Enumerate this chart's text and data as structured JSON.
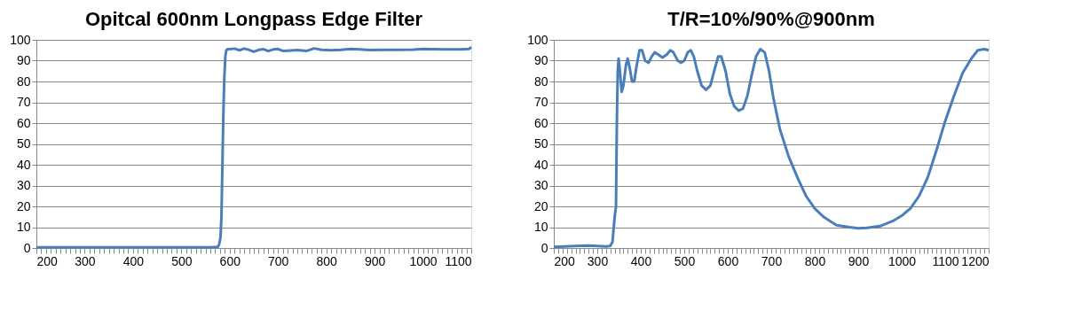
{
  "chart_data": [
    {
      "type": "line",
      "title": "Opitcal 600nm Longpass Edge Filter",
      "xlim": [
        200,
        1100
      ],
      "ylim": [
        0,
        100
      ],
      "yticks": [
        0,
        10,
        20,
        30,
        40,
        50,
        60,
        70,
        80,
        90,
        100
      ],
      "grid": "y",
      "marker": "none",
      "line_style": "solid",
      "xticks": [
        200,
        {
          "value": 210,
          "label": null
        },
        {
          "value": 220,
          "label": null
        },
        {
          "value": 230,
          "label": null
        },
        {
          "value": 240,
          "label": null
        },
        {
          "value": 250,
          "label": null
        },
        {
          "value": 260,
          "label": null
        },
        {
          "value": 270,
          "label": null
        },
        {
          "value": 280,
          "label": null
        },
        {
          "value": 290,
          "label": null
        },
        300,
        {
          "value": 310,
          "label": null
        },
        {
          "value": 320,
          "label": null
        },
        {
          "value": 330,
          "label": null
        },
        {
          "value": 340,
          "label": null
        },
        {
          "value": 350,
          "label": null
        },
        {
          "value": 360,
          "label": null
        },
        {
          "value": 370,
          "label": null
        },
        {
          "value": 380,
          "label": null
        },
        {
          "value": 390,
          "label": null
        },
        400,
        {
          "value": 410,
          "label": null
        },
        {
          "value": 420,
          "label": null
        },
        {
          "value": 430,
          "label": null
        },
        {
          "value": 440,
          "label": null
        },
        {
          "value": 450,
          "label": null
        },
        {
          "value": 460,
          "label": null
        },
        {
          "value": 470,
          "label": null
        },
        {
          "value": 480,
          "label": null
        },
        {
          "value": 490,
          "label": null
        },
        500,
        {
          "value": 510,
          "label": null
        },
        {
          "value": 520,
          "label": null
        },
        {
          "value": 530,
          "label": null
        },
        {
          "value": 540,
          "label": null
        },
        {
          "value": 550,
          "label": null
        },
        {
          "value": 560,
          "label": null
        },
        {
          "value": 570,
          "label": null
        },
        {
          "value": 580,
          "label": null
        },
        {
          "value": 590,
          "label": null
        },
        600,
        {
          "value": 610,
          "label": null
        },
        {
          "value": 620,
          "label": null
        },
        {
          "value": 630,
          "label": null
        },
        {
          "value": 640,
          "label": null
        },
        {
          "value": 650,
          "label": null
        },
        {
          "value": 660,
          "label": null
        },
        {
          "value": 670,
          "label": null
        },
        {
          "value": 680,
          "label": null
        },
        {
          "value": 690,
          "label": null
        },
        700,
        {
          "value": 710,
          "label": null
        },
        {
          "value": 720,
          "label": null
        },
        {
          "value": 730,
          "label": null
        },
        {
          "value": 740,
          "label": null
        },
        {
          "value": 750,
          "label": null
        },
        {
          "value": 760,
          "label": null
        },
        {
          "value": 770,
          "label": null
        },
        {
          "value": 780,
          "label": null
        },
        {
          "value": 790,
          "label": null
        },
        800,
        {
          "value": 810,
          "label": null
        },
        {
          "value": 820,
          "label": null
        },
        {
          "value": 830,
          "label": null
        },
        {
          "value": 840,
          "label": null
        },
        {
          "value": 850,
          "label": null
        },
        {
          "value": 860,
          "label": null
        },
        {
          "value": 870,
          "label": null
        },
        {
          "value": 880,
          "label": null
        },
        {
          "value": 890,
          "label": null
        },
        900,
        {
          "value": 910,
          "label": null
        },
        {
          "value": 920,
          "label": null
        },
        {
          "value": 930,
          "label": null
        },
        {
          "value": 940,
          "label": null
        },
        {
          "value": 950,
          "label": null
        },
        {
          "value": 960,
          "label": null
        },
        {
          "value": 970,
          "label": null
        },
        {
          "value": 980,
          "label": null
        },
        {
          "value": 990,
          "label": null
        },
        1000,
        {
          "value": 1010,
          "label": null
        },
        {
          "value": 1020,
          "label": null
        },
        {
          "value": 1030,
          "label": null
        },
        {
          "value": 1040,
          "label": null
        },
        {
          "value": 1050,
          "label": null
        },
        {
          "value": 1060,
          "label": null
        },
        {
          "value": 1070,
          "label": null
        },
        {
          "value": 1080,
          "label": null
        },
        {
          "value": 1090,
          "label": null
        },
        1100
      ],
      "series": [
        {
          "color": "#4a7ebb",
          "x": [
            200,
            300,
            400,
            500,
            560,
            575,
            578,
            581,
            583,
            585,
            587,
            589,
            591,
            593,
            596,
            600,
            610,
            620,
            630,
            640,
            650,
            660,
            670,
            680,
            690,
            700,
            710,
            720,
            740,
            760,
            775,
            790,
            810,
            830,
            850,
            870,
            890,
            920,
            950,
            980,
            1000,
            1020,
            1050,
            1080,
            1095,
            1100
          ],
          "values": [
            0.3,
            0.3,
            0.3,
            0.3,
            0.3,
            0.5,
            1.5,
            5,
            15,
            40,
            65,
            82,
            92,
            95,
            95.5,
            95.5,
            95.8,
            95,
            95.8,
            95.2,
            94.3,
            95.2,
            95.5,
            94.6,
            95.4,
            95.6,
            94.7,
            94.8,
            95.1,
            94.7,
            95.9,
            95.2,
            95,
            95.2,
            95.6,
            95.4,
            95.1,
            95.2,
            95.2,
            95.3,
            95.6,
            95.5,
            95.4,
            95.4,
            95.6,
            96.5
          ]
        }
      ]
    },
    {
      "type": "line",
      "title": "T/R=10%/90%@900nm",
      "xlim": [
        200,
        1200
      ],
      "ylim": [
        0,
        100
      ],
      "yticks": [
        0,
        10,
        20,
        30,
        40,
        50,
        60,
        70,
        80,
        90,
        100
      ],
      "grid": "y",
      "marker": "none",
      "line_style": "solid",
      "xticks": [
        200,
        {
          "value": 210,
          "label": null
        },
        {
          "value": 220,
          "label": null
        },
        {
          "value": 230,
          "label": null
        },
        {
          "value": 240,
          "label": null
        },
        {
          "value": 250,
          "label": null
        },
        {
          "value": 260,
          "label": null
        },
        {
          "value": 270,
          "label": null
        },
        {
          "value": 280,
          "label": null
        },
        {
          "value": 290,
          "label": null
        },
        300,
        {
          "value": 310,
          "label": null
        },
        {
          "value": 320,
          "label": null
        },
        {
          "value": 330,
          "label": null
        },
        {
          "value": 340,
          "label": null
        },
        {
          "value": 350,
          "label": null
        },
        {
          "value": 360,
          "label": null
        },
        {
          "value": 370,
          "label": null
        },
        {
          "value": 380,
          "label": null
        },
        {
          "value": 390,
          "label": null
        },
        400,
        {
          "value": 410,
          "label": null
        },
        {
          "value": 420,
          "label": null
        },
        {
          "value": 430,
          "label": null
        },
        {
          "value": 440,
          "label": null
        },
        {
          "value": 450,
          "label": null
        },
        {
          "value": 460,
          "label": null
        },
        {
          "value": 470,
          "label": null
        },
        {
          "value": 480,
          "label": null
        },
        {
          "value": 490,
          "label": null
        },
        500,
        {
          "value": 510,
          "label": null
        },
        {
          "value": 520,
          "label": null
        },
        {
          "value": 530,
          "label": null
        },
        {
          "value": 540,
          "label": null
        },
        {
          "value": 550,
          "label": null
        },
        {
          "value": 560,
          "label": null
        },
        {
          "value": 570,
          "label": null
        },
        {
          "value": 580,
          "label": null
        },
        {
          "value": 590,
          "label": null
        },
        600,
        {
          "value": 610,
          "label": null
        },
        {
          "value": 620,
          "label": null
        },
        {
          "value": 630,
          "label": null
        },
        {
          "value": 640,
          "label": null
        },
        {
          "value": 650,
          "label": null
        },
        {
          "value": 660,
          "label": null
        },
        {
          "value": 670,
          "label": null
        },
        {
          "value": 680,
          "label": null
        },
        {
          "value": 690,
          "label": null
        },
        700,
        {
          "value": 710,
          "label": null
        },
        {
          "value": 720,
          "label": null
        },
        {
          "value": 730,
          "label": null
        },
        {
          "value": 740,
          "label": null
        },
        {
          "value": 750,
          "label": null
        },
        {
          "value": 760,
          "label": null
        },
        {
          "value": 770,
          "label": null
        },
        {
          "value": 780,
          "label": null
        },
        {
          "value": 790,
          "label": null
        },
        800,
        {
          "value": 810,
          "label": null
        },
        {
          "value": 820,
          "label": null
        },
        {
          "value": 830,
          "label": null
        },
        {
          "value": 840,
          "label": null
        },
        {
          "value": 850,
          "label": null
        },
        {
          "value": 860,
          "label": null
        },
        {
          "value": 870,
          "label": null
        },
        {
          "value": 880,
          "label": null
        },
        {
          "value": 890,
          "label": null
        },
        900,
        {
          "value": 910,
          "label": null
        },
        {
          "value": 920,
          "label": null
        },
        {
          "value": 930,
          "label": null
        },
        {
          "value": 940,
          "label": null
        },
        {
          "value": 950,
          "label": null
        },
        {
          "value": 960,
          "label": null
        },
        {
          "value": 970,
          "label": null
        },
        {
          "value": 980,
          "label": null
        },
        {
          "value": 990,
          "label": null
        },
        1000,
        {
          "value": 1010,
          "label": null
        },
        {
          "value": 1020,
          "label": null
        },
        {
          "value": 1030,
          "label": null
        },
        {
          "value": 1040,
          "label": null
        },
        {
          "value": 1050,
          "label": null
        },
        {
          "value": 1060,
          "label": null
        },
        {
          "value": 1070,
          "label": null
        },
        {
          "value": 1080,
          "label": null
        },
        {
          "value": 1090,
          "label": null
        },
        1100,
        {
          "value": 1110,
          "label": null
        },
        {
          "value": 1120,
          "label": null
        },
        {
          "value": 1130,
          "label": null
        },
        {
          "value": 1140,
          "label": null
        },
        {
          "value": 1150,
          "label": null
        },
        {
          "value": 1160,
          "label": null
        },
        {
          "value": 1170,
          "label": null
        },
        {
          "value": 1180,
          "label": null
        },
        {
          "value": 1190,
          "label": null
        },
        1200
      ],
      "series": [
        {
          "color": "#4a7ebb",
          "x": [
            200,
            250,
            280,
            320,
            330,
            335,
            340,
            343,
            345,
            347,
            349,
            352,
            356,
            360,
            366,
            370,
            375,
            380,
            385,
            390,
            397,
            403,
            410,
            418,
            425,
            432,
            440,
            450,
            460,
            468,
            475,
            485,
            492,
            500,
            508,
            515,
            522,
            530,
            540,
            550,
            560,
            570,
            578,
            585,
            595,
            605,
            615,
            625,
            635,
            645,
            655,
            665,
            675,
            685,
            695,
            705,
            720,
            740,
            760,
            780,
            800,
            820,
            850,
            880,
            900,
            920,
            950,
            980,
            1000,
            1020,
            1040,
            1060,
            1080,
            1100,
            1120,
            1140,
            1160,
            1175,
            1190,
            1200
          ],
          "values": [
            0.5,
            1,
            1.2,
            0.7,
            1,
            3,
            15,
            20,
            60,
            85,
            91,
            85,
            75,
            78,
            88,
            91,
            86,
            80,
            80,
            87,
            95,
            95,
            90,
            89,
            92,
            94,
            93,
            91.5,
            93,
            95,
            94,
            90,
            89,
            90,
            94,
            95,
            92,
            85,
            78,
            76,
            78,
            86,
            92,
            92,
            85,
            74,
            68,
            66,
            67,
            73,
            83,
            92,
            95.5,
            94,
            85,
            72,
            57,
            44,
            34,
            25,
            19,
            15,
            11,
            10,
            9.5,
            9.7,
            10.5,
            13,
            15.5,
            19,
            25,
            34,
            47,
            61,
            73,
            84,
            91,
            95,
            95.5,
            95
          ]
        }
      ]
    }
  ]
}
